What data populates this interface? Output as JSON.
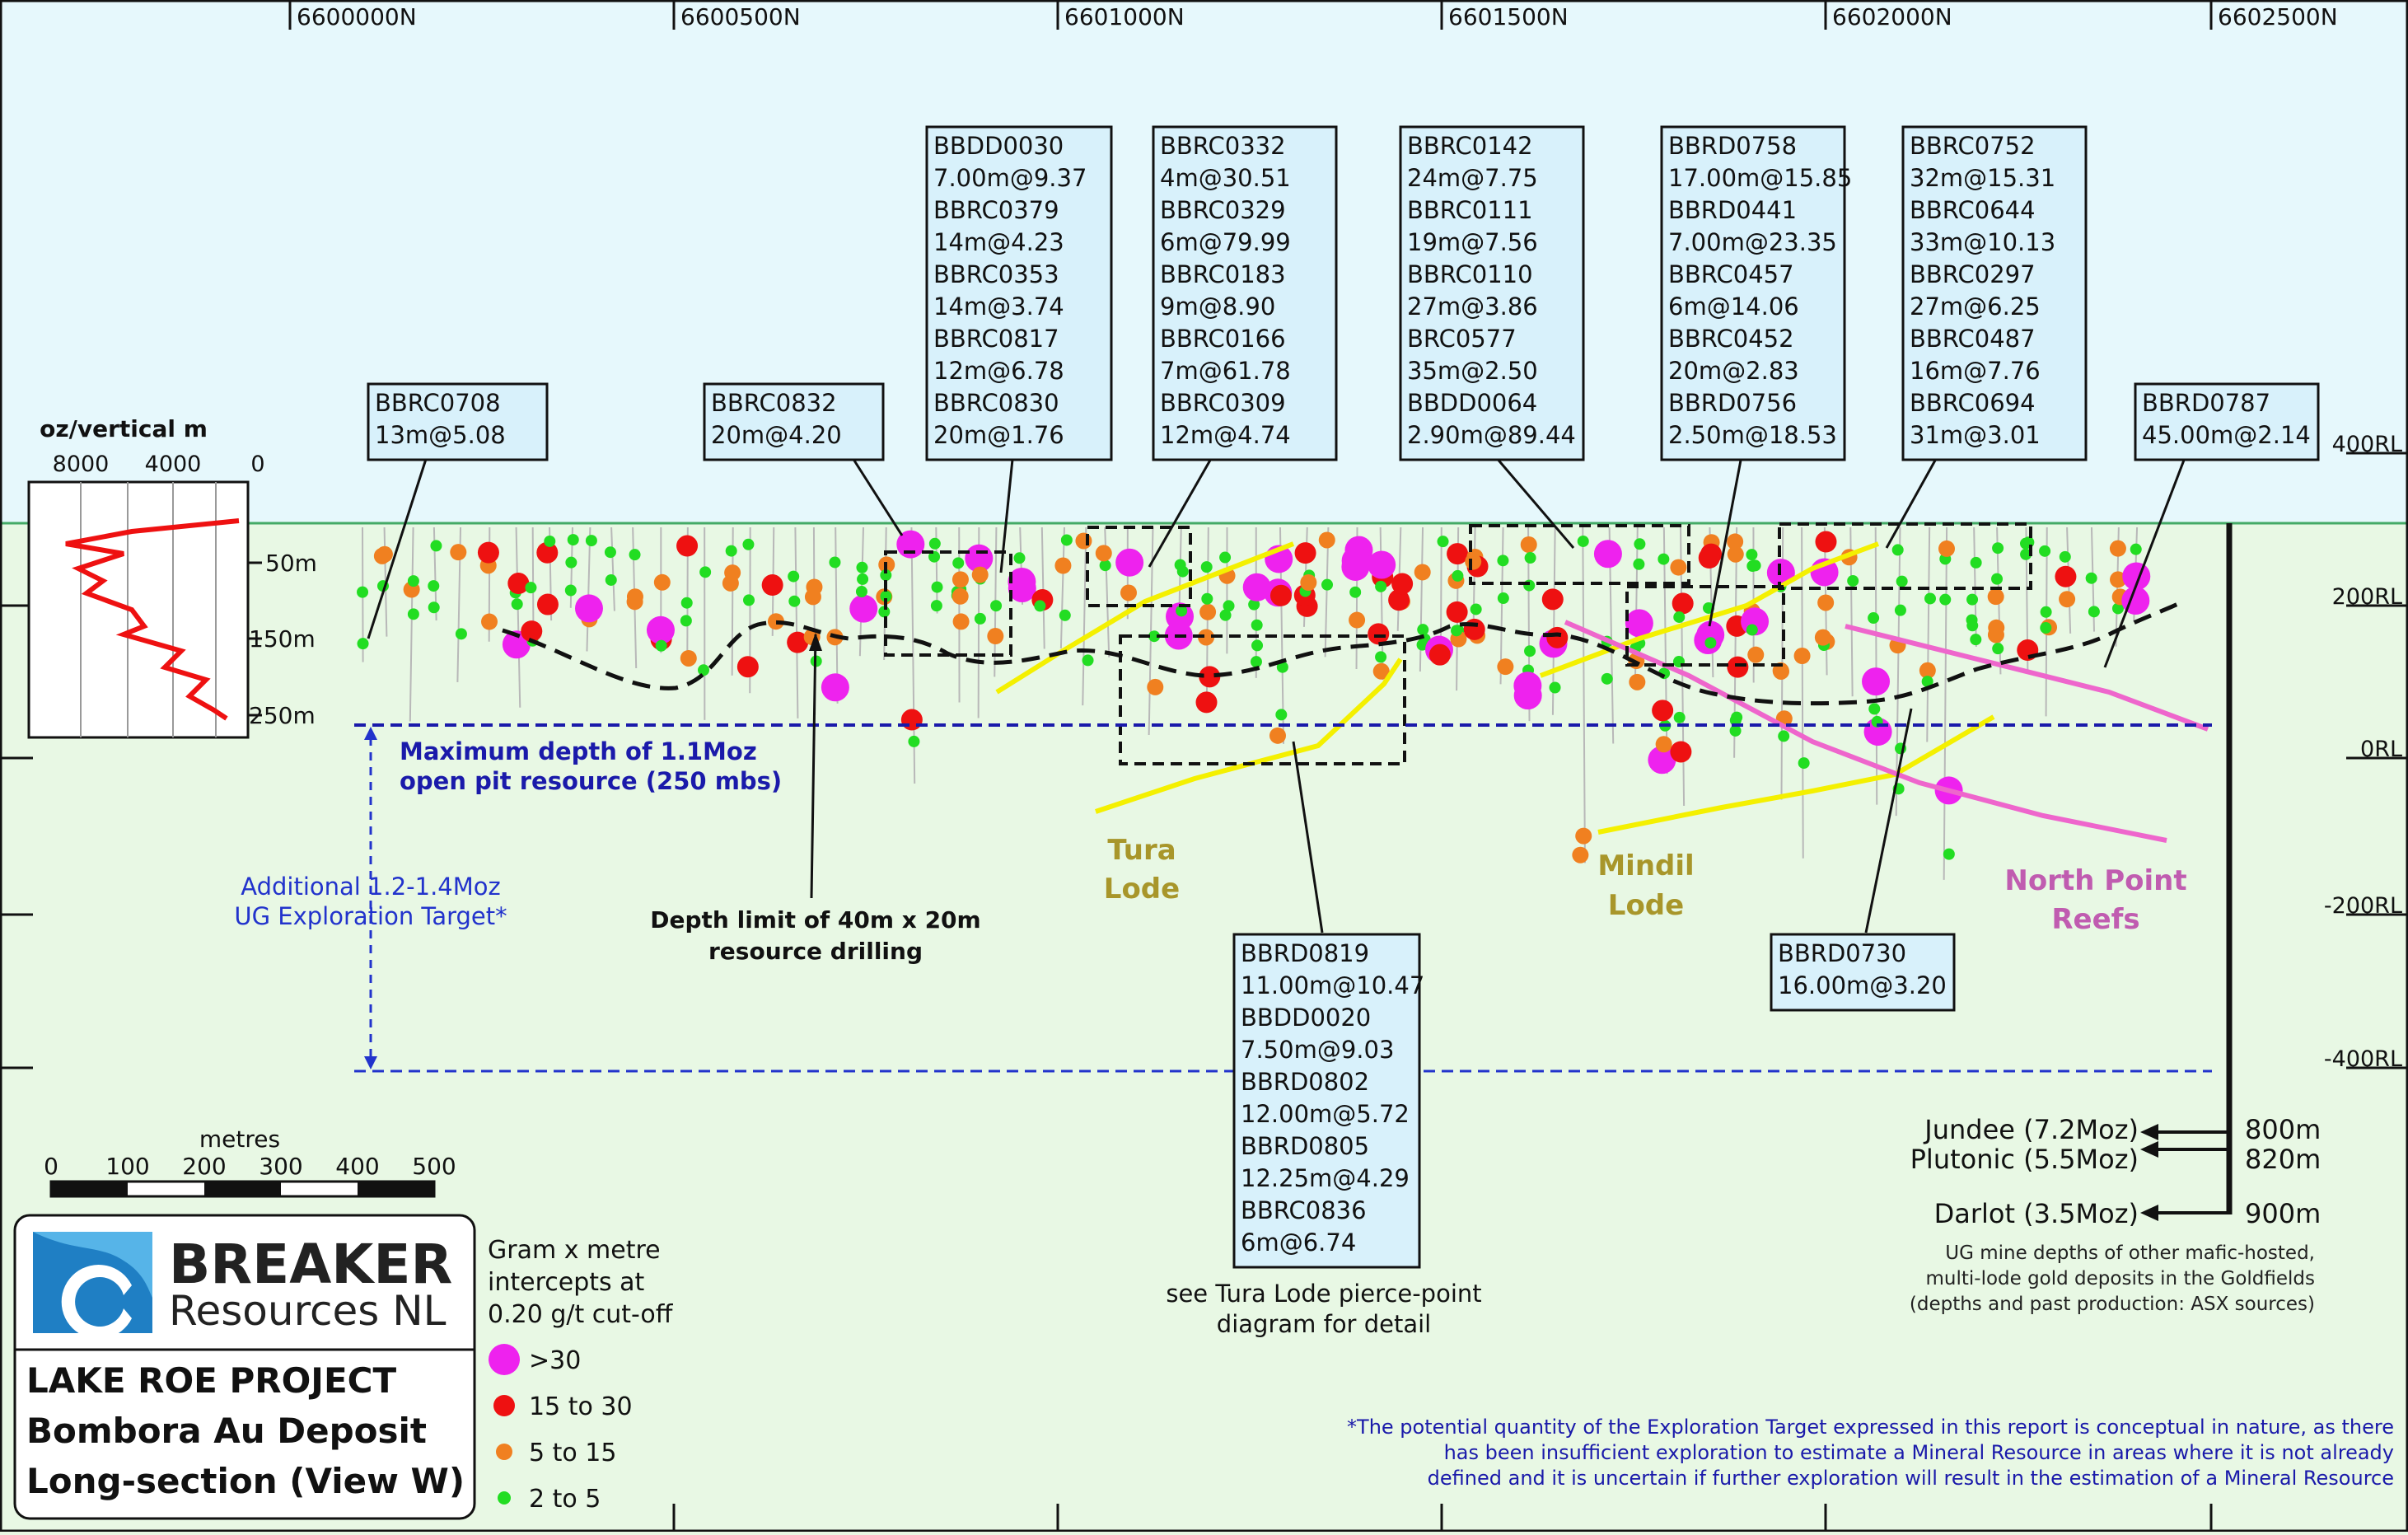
{
  "northings": [
    "6600000N",
    "6600500N",
    "6601000N",
    "6601500N",
    "6602000N",
    "6602500N"
  ],
  "rl_labels": [
    "400RL",
    "200RL",
    "0RL",
    "-200RL",
    "-400RL"
  ],
  "inset": {
    "title": "oz/vertical m",
    "x_ticks": [
      "8000",
      "4000",
      "0"
    ],
    "y_ticks": [
      "50m",
      "150m",
      "250m"
    ]
  },
  "intercept_boxes": [
    {
      "lines": [
        "BBRC0708",
        "13m@5.08"
      ]
    },
    {
      "lines": [
        "BBRC0832",
        "20m@4.20"
      ]
    },
    {
      "lines": [
        "BBDD0030",
        "7.00m@9.37",
        "BBRC0379",
        "14m@4.23",
        "BBRC0353",
        "14m@3.74",
        "BBRC0817",
        "12m@6.78",
        "BBRC0830",
        "20m@1.76"
      ]
    },
    {
      "lines": [
        "BBRC0332",
        "4m@30.51",
        "BBRC0329",
        "6m@79.99",
        "BBRC0183",
        "9m@8.90",
        "BBRC0166",
        "7m@61.78",
        "BBRC0309",
        "12m@4.74"
      ]
    },
    {
      "lines": [
        "BBRC0142",
        "24m@7.75",
        "BBRC0111",
        "19m@7.56",
        "BBRC0110",
        "27m@3.86",
        "BRC0577",
        "35m@2.50",
        "BBDD0064",
        "2.90m@89.44"
      ]
    },
    {
      "lines": [
        "BBRD0758",
        "17.00m@15.85",
        "BBRD0441",
        "7.00m@23.35",
        "BBRC0457",
        "6m@14.06",
        "BBRC0452",
        "20m@2.83",
        "BBRD0756",
        "2.50m@18.53"
      ]
    },
    {
      "lines": [
        "BBRC0752",
        "32m@15.31",
        "BBRC0644",
        "33m@10.13",
        "BBRC0297",
        "27m@6.25",
        "BBRC0487",
        "16m@7.76",
        "BBRC0694",
        "31m@3.01"
      ]
    },
    {
      "lines": [
        "BBRD0787",
        "45.00m@2.14"
      ]
    },
    {
      "lines": [
        "BBRD0819",
        "11.00m@10.47",
        "BBDD0020",
        "7.50m@9.03",
        "BBRD0802",
        "12.00m@5.72",
        "BBRD0805",
        "12.25m@4.29",
        "BBRC0836",
        "6m@6.74"
      ]
    },
    {
      "lines": [
        "BBRD0730",
        "16.00m@3.20"
      ]
    }
  ],
  "annotations": {
    "max_depth_line1": "Maximum depth of 1.1Moz",
    "max_depth_line2": "open pit resource (250 mbs)",
    "ug_target_line1": "Additional 1.2-1.4Moz",
    "ug_target_line2": "UG Exploration Target*",
    "depth_limit_line1": "Depth limit of 40m x 20m",
    "depth_limit_line2": "resource drilling",
    "tura_line1": "Tura",
    "tura_line2": "Lode",
    "mindil_line1": "Mindil",
    "mindil_line2": "Lode",
    "north_point_line1": "North Point",
    "north_point_line2": "Reefs",
    "see_tura_line1": "see Tura Lode pierce-point",
    "see_tura_line2": "diagram for detail"
  },
  "mine_depths": [
    {
      "name": "Jundee (7.2Moz)",
      "depth": "800m"
    },
    {
      "name": "Plutonic (5.5Moz)",
      "depth": "820m"
    },
    {
      "name": "Darlot (3.5Moz)",
      "depth": "900m"
    }
  ],
  "mine_note": [
    "UG mine depths of other mafic-hosted,",
    "multi-lode gold deposits in the Goldfields",
    "(depths and past production: ASX sources)"
  ],
  "scale": {
    "title": "metres",
    "ticks": [
      "0",
      "100",
      "200",
      "300",
      "400",
      "500"
    ]
  },
  "logo": {
    "line1": "BREAKER",
    "line2": "Resources NL"
  },
  "project": {
    "line1": "LAKE ROE PROJECT",
    "line2": "Bombora Au Deposit",
    "line3": "Long-section (View W)"
  },
  "legend": {
    "title": [
      "Gram x metre",
      "intercepts at",
      "0.20 g/t cut-off"
    ],
    "items": [
      {
        "label": ">30",
        "color": "#ee22ee"
      },
      {
        "label": "15 to 30",
        "color": "#ee1111"
      },
      {
        "label": "5 to 15",
        "color": "#f08020"
      },
      {
        "label": "2 to 5",
        "color": "#22dd22"
      }
    ]
  },
  "disclaimer": [
    "*The potential quantity of the Exploration Target expressed in this report is conceptual in nature, as there",
    "has been insufficient exploration to estimate a Mineral Resource in areas where it is not already",
    "defined and it is uncertain if further exploration will result in the estimation of a Mineral Resource"
  ],
  "colors": {
    "sky": "#e6f8fc",
    "ground": "#e8f8e4",
    "dark_blue": "#1a1aaa",
    "mid_blue": "#2233cc",
    "lode_yellow": "#f4f000",
    "lode_pink": "#ee66cc",
    "tura_text": "#a8962a",
    "reef_text": "#c05cb0",
    "box_fill": "#d8f1fb"
  }
}
